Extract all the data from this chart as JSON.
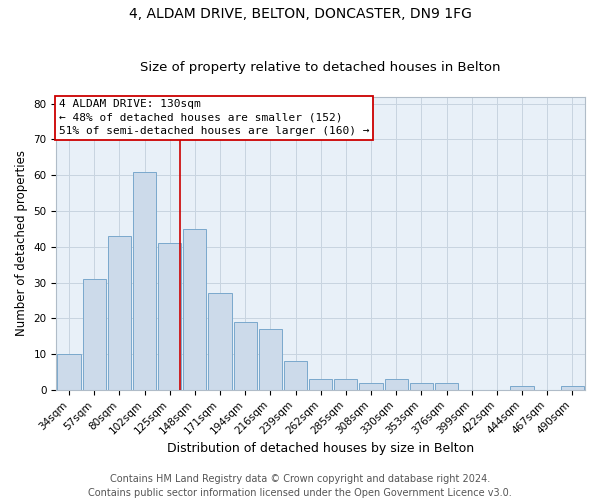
{
  "title1": "4, ALDAM DRIVE, BELTON, DONCASTER, DN9 1FG",
  "title2": "Size of property relative to detached houses in Belton",
  "xlabel": "Distribution of detached houses by size in Belton",
  "ylabel": "Number of detached properties",
  "categories": [
    "34sqm",
    "57sqm",
    "80sqm",
    "102sqm",
    "125sqm",
    "148sqm",
    "171sqm",
    "194sqm",
    "216sqm",
    "239sqm",
    "262sqm",
    "285sqm",
    "308sqm",
    "330sqm",
    "353sqm",
    "376sqm",
    "399sqm",
    "422sqm",
    "444sqm",
    "467sqm",
    "490sqm"
  ],
  "values": [
    10,
    31,
    43,
    61,
    41,
    45,
    27,
    19,
    17,
    8,
    3,
    3,
    2,
    3,
    2,
    2,
    0,
    0,
    1,
    0,
    1
  ],
  "bar_color": "#ccdaea",
  "bar_edge_color": "#7aa8cc",
  "grid_color": "#c8d4e0",
  "vline_x": 4.42,
  "vline_color": "#cc0000",
  "annotation_line1": "4 ALDAM DRIVE: 130sqm",
  "annotation_line2": "← 48% of detached houses are smaller (152)",
  "annotation_line3": "51% of semi-detached houses are larger (160) →",
  "annotation_box_color": "#ffffff",
  "annotation_box_edge": "#cc0000",
  "footnote": "Contains HM Land Registry data © Crown copyright and database right 2024.\nContains public sector information licensed under the Open Government Licence v3.0.",
  "ylim": [
    0,
    82
  ],
  "yticks": [
    0,
    10,
    20,
    30,
    40,
    50,
    60,
    70,
    80
  ],
  "title1_fontsize": 10,
  "title2_fontsize": 9.5,
  "xlabel_fontsize": 9,
  "ylabel_fontsize": 8.5,
  "tick_fontsize": 7.5,
  "annotation_fontsize": 8,
  "footnote_fontsize": 7,
  "fig_bg": "#ffffff",
  "plot_bg": "#e8f0f8"
}
